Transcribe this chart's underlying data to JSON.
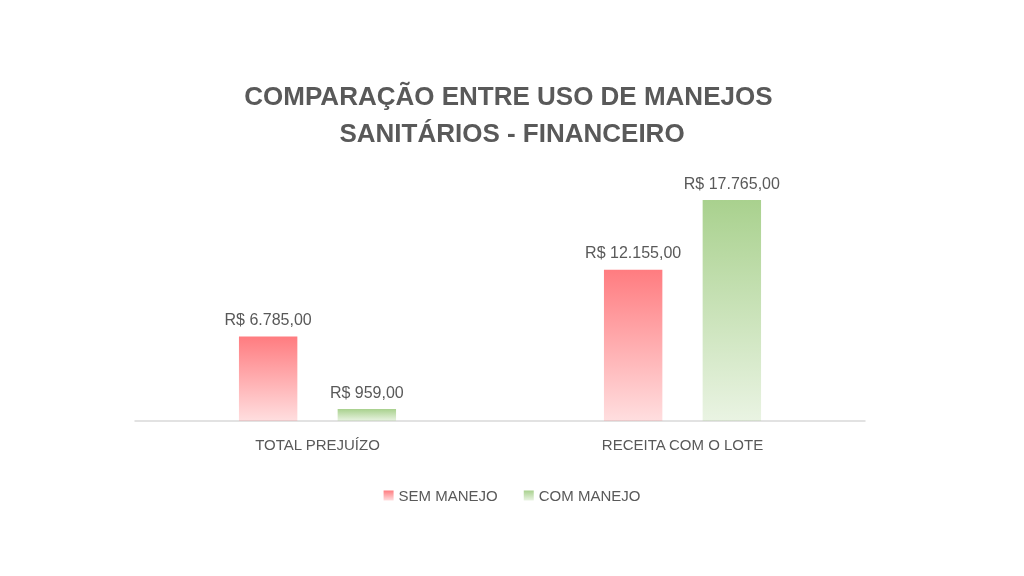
{
  "chart_data": {
    "type": "bar",
    "title": "COMPARAÇÃO ENTRE USO DE MANEJOS SANITÁRIOS - FINANCEIRO",
    "categories": [
      "TOTAL PREJUÍZO",
      "RECEITA COM O LOTE"
    ],
    "series": [
      {
        "name": "SEM MANEJO",
        "color": "#ff7c80",
        "values": [
          6785,
          12155
        ],
        "value_labels": [
          "R$ 6.785,00",
          "R$ 12.155,00"
        ]
      },
      {
        "name": "COM MANEJO",
        "color": "#a9d18e",
        "values": [
          959,
          17765
        ],
        "value_labels": [
          "R$ 959,00",
          "R$ 17.765,00"
        ]
      }
    ],
    "legend": "bottom"
  }
}
